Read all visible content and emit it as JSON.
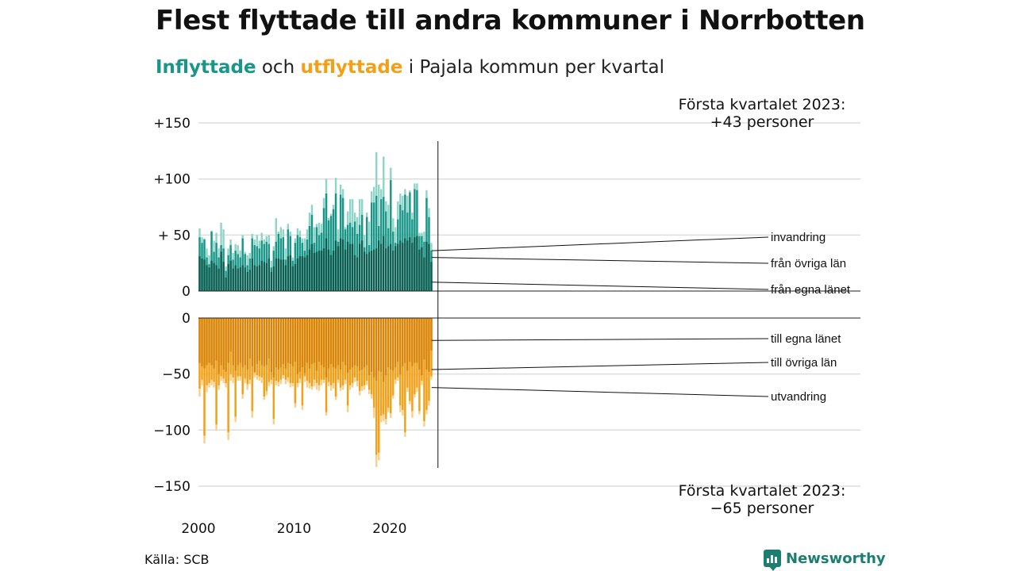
{
  "header": {
    "title": "Flest flyttade till andra kommuner i Norrbotten",
    "subtitle_in": "Inflyttade",
    "subtitle_mid": " och ",
    "subtitle_out": "utflyttade",
    "subtitle_rest": " i Pajala kommun per kvartal"
  },
  "footer": {
    "source": "Källa: SCB",
    "brand": "Newsworthy"
  },
  "colors": {
    "in_own": "#0b5e51",
    "in_other": "#1a9688",
    "in_emig": "#8fd4c8",
    "out_own": "#d9850a",
    "out_other": "#f2a018",
    "out_emig": "#f8d08a",
    "grid": "#dddddd"
  },
  "chart_data": {
    "type": "bar",
    "stacked": true,
    "diverging": true,
    "start_year": 2000,
    "period": "quarter",
    "x_ticks": [
      "2000",
      "2010",
      "2020"
    ],
    "y_ticks_top": [
      "+150",
      "+100",
      "+ 50",
      "0"
    ],
    "y_ticks_bottom": [
      "0",
      "−50",
      "−100",
      "−150"
    ],
    "ylim_top": [
      0,
      150
    ],
    "ylim_bottom": [
      -150,
      0
    ],
    "legend_in": [
      "invandring",
      "från övriga län",
      "från egna länet"
    ],
    "legend_out": [
      "till egna länet",
      "till övriga län",
      "utvandring"
    ],
    "annotation_top": [
      "Första kvartalet 2023:",
      "+43 personer"
    ],
    "annotation_bottom": [
      "Första kvartalet 2023:",
      "−65 personer"
    ],
    "inflow_totals": [
      56,
      48,
      47,
      38,
      32,
      54,
      45,
      52,
      38,
      61,
      55,
      22,
      38,
      46,
      34,
      42,
      41,
      36,
      50,
      35,
      32,
      34,
      51,
      46,
      50,
      45,
      52,
      46,
      49,
      50,
      27,
      40,
      65,
      53,
      57,
      55,
      38,
      60,
      53,
      30,
      47,
      56,
      54,
      47,
      47,
      55,
      70,
      77,
      57,
      60,
      61,
      60,
      83,
      100,
      65,
      69,
      77,
      101,
      55,
      95,
      91,
      57,
      71,
      82,
      82,
      70,
      66,
      82,
      82,
      50,
      70,
      62,
      89,
      93,
      124,
      95,
      91,
      120,
      80,
      77,
      110,
      65,
      57,
      80,
      87,
      85,
      91,
      85,
      90,
      70,
      96,
      96,
      52,
      52,
      53,
      90,
      74,
      43
    ],
    "inflow_own": [
      31,
      29,
      28,
      23,
      21,
      27,
      25,
      23,
      20,
      35,
      26,
      12,
      24,
      27,
      20,
      23,
      20,
      21,
      23,
      21,
      17,
      19,
      29,
      23,
      22,
      23,
      27,
      26,
      25,
      29,
      17,
      22,
      29,
      29,
      28,
      28,
      23,
      31,
      32,
      22,
      24,
      29,
      31,
      31,
      30,
      32,
      37,
      42,
      34,
      35,
      36,
      36,
      38,
      47,
      37,
      32,
      36,
      45,
      40,
      47,
      46,
      37,
      44,
      42,
      42,
      32,
      30,
      42,
      45,
      35,
      33,
      35,
      36,
      37,
      38,
      45,
      42,
      49,
      38,
      40,
      42,
      36,
      40,
      42,
      45,
      43,
      47,
      45,
      48,
      43,
      48,
      49,
      37,
      39,
      30,
      44,
      42,
      26
    ],
    "inflow_other": [
      48,
      43,
      46,
      30,
      24,
      53,
      35,
      43,
      30,
      41,
      38,
      18,
      32,
      41,
      28,
      36,
      33,
      30,
      47,
      33,
      23,
      29,
      47,
      41,
      40,
      38,
      45,
      42,
      44,
      42,
      21,
      36,
      44,
      51,
      47,
      48,
      28,
      55,
      49,
      27,
      43,
      50,
      48,
      43,
      36,
      46,
      58,
      68,
      43,
      57,
      50,
      52,
      74,
      87,
      63,
      67,
      73,
      87,
      44,
      86,
      83,
      55,
      59,
      61,
      57,
      62,
      51,
      59,
      68,
      39,
      66,
      41,
      79,
      79,
      85,
      58,
      82,
      84,
      71,
      56,
      99,
      53,
      43,
      64,
      77,
      72,
      86,
      70,
      88,
      64,
      91,
      90,
      49,
      49,
      44,
      83,
      66,
      36
    ],
    "outflow_own": [
      40,
      43,
      45,
      42,
      40,
      42,
      45,
      38,
      50,
      42,
      46,
      48,
      40,
      30,
      42,
      47,
      42,
      40,
      44,
      42,
      46,
      36,
      43,
      48,
      41,
      38,
      42,
      43,
      42,
      36,
      48,
      53,
      44,
      46,
      44,
      41,
      45,
      40,
      41,
      43,
      39,
      50,
      48,
      44,
      49,
      40,
      45,
      41,
      40,
      47,
      39,
      42,
      44,
      53,
      45,
      41,
      44,
      45,
      42,
      46,
      39,
      42,
      49,
      46,
      44,
      42,
      43,
      47,
      46,
      44,
      42,
      51,
      48,
      53,
      56,
      47,
      48,
      57,
      51,
      44,
      46,
      47,
      44,
      39,
      50,
      43,
      40,
      47,
      39,
      43,
      40,
      40,
      46,
      51,
      37,
      46,
      48,
      29
    ],
    "outflow_other": [
      63,
      55,
      105,
      60,
      58,
      55,
      57,
      95,
      60,
      52,
      54,
      58,
      102,
      50,
      53,
      88,
      52,
      52,
      68,
      54,
      59,
      55,
      83,
      49,
      51,
      52,
      53,
      70,
      65,
      57,
      55,
      90,
      56,
      57,
      55,
      51,
      55,
      53,
      58,
      58,
      76,
      58,
      54,
      78,
      52,
      56,
      58,
      61,
      55,
      58,
      60,
      55,
      55,
      84,
      57,
      60,
      58,
      70,
      55,
      62,
      60,
      55,
      78,
      60,
      58,
      53,
      56,
      65,
      61,
      60,
      56,
      64,
      68,
      80,
      122,
      120,
      87,
      86,
      90,
      80,
      85,
      69,
      55,
      53,
      78,
      82,
      102,
      62,
      74,
      83,
      68,
      62,
      83,
      56,
      92,
      82,
      74,
      52
    ],
    "outflow_total": [
      70,
      60,
      112,
      66,
      62,
      60,
      62,
      100,
      64,
      56,
      58,
      62,
      109,
      56,
      58,
      93,
      56,
      56,
      72,
      58,
      64,
      59,
      89,
      53,
      55,
      56,
      58,
      73,
      69,
      61,
      59,
      95,
      60,
      61,
      59,
      54,
      59,
      57,
      62,
      61,
      80,
      62,
      58,
      82,
      57,
      62,
      63,
      64,
      61,
      64,
      65,
      60,
      58,
      87,
      61,
      65,
      63,
      73,
      58,
      65,
      64,
      59,
      84,
      64,
      62,
      57,
      61,
      69,
      65,
      64,
      60,
      68,
      72,
      89,
      133,
      127,
      93,
      92,
      95,
      84,
      89,
      72,
      59,
      56,
      84,
      87,
      106,
      66,
      77,
      89,
      71,
      66,
      86,
      60,
      97,
      86,
      78,
      55
    ]
  }
}
